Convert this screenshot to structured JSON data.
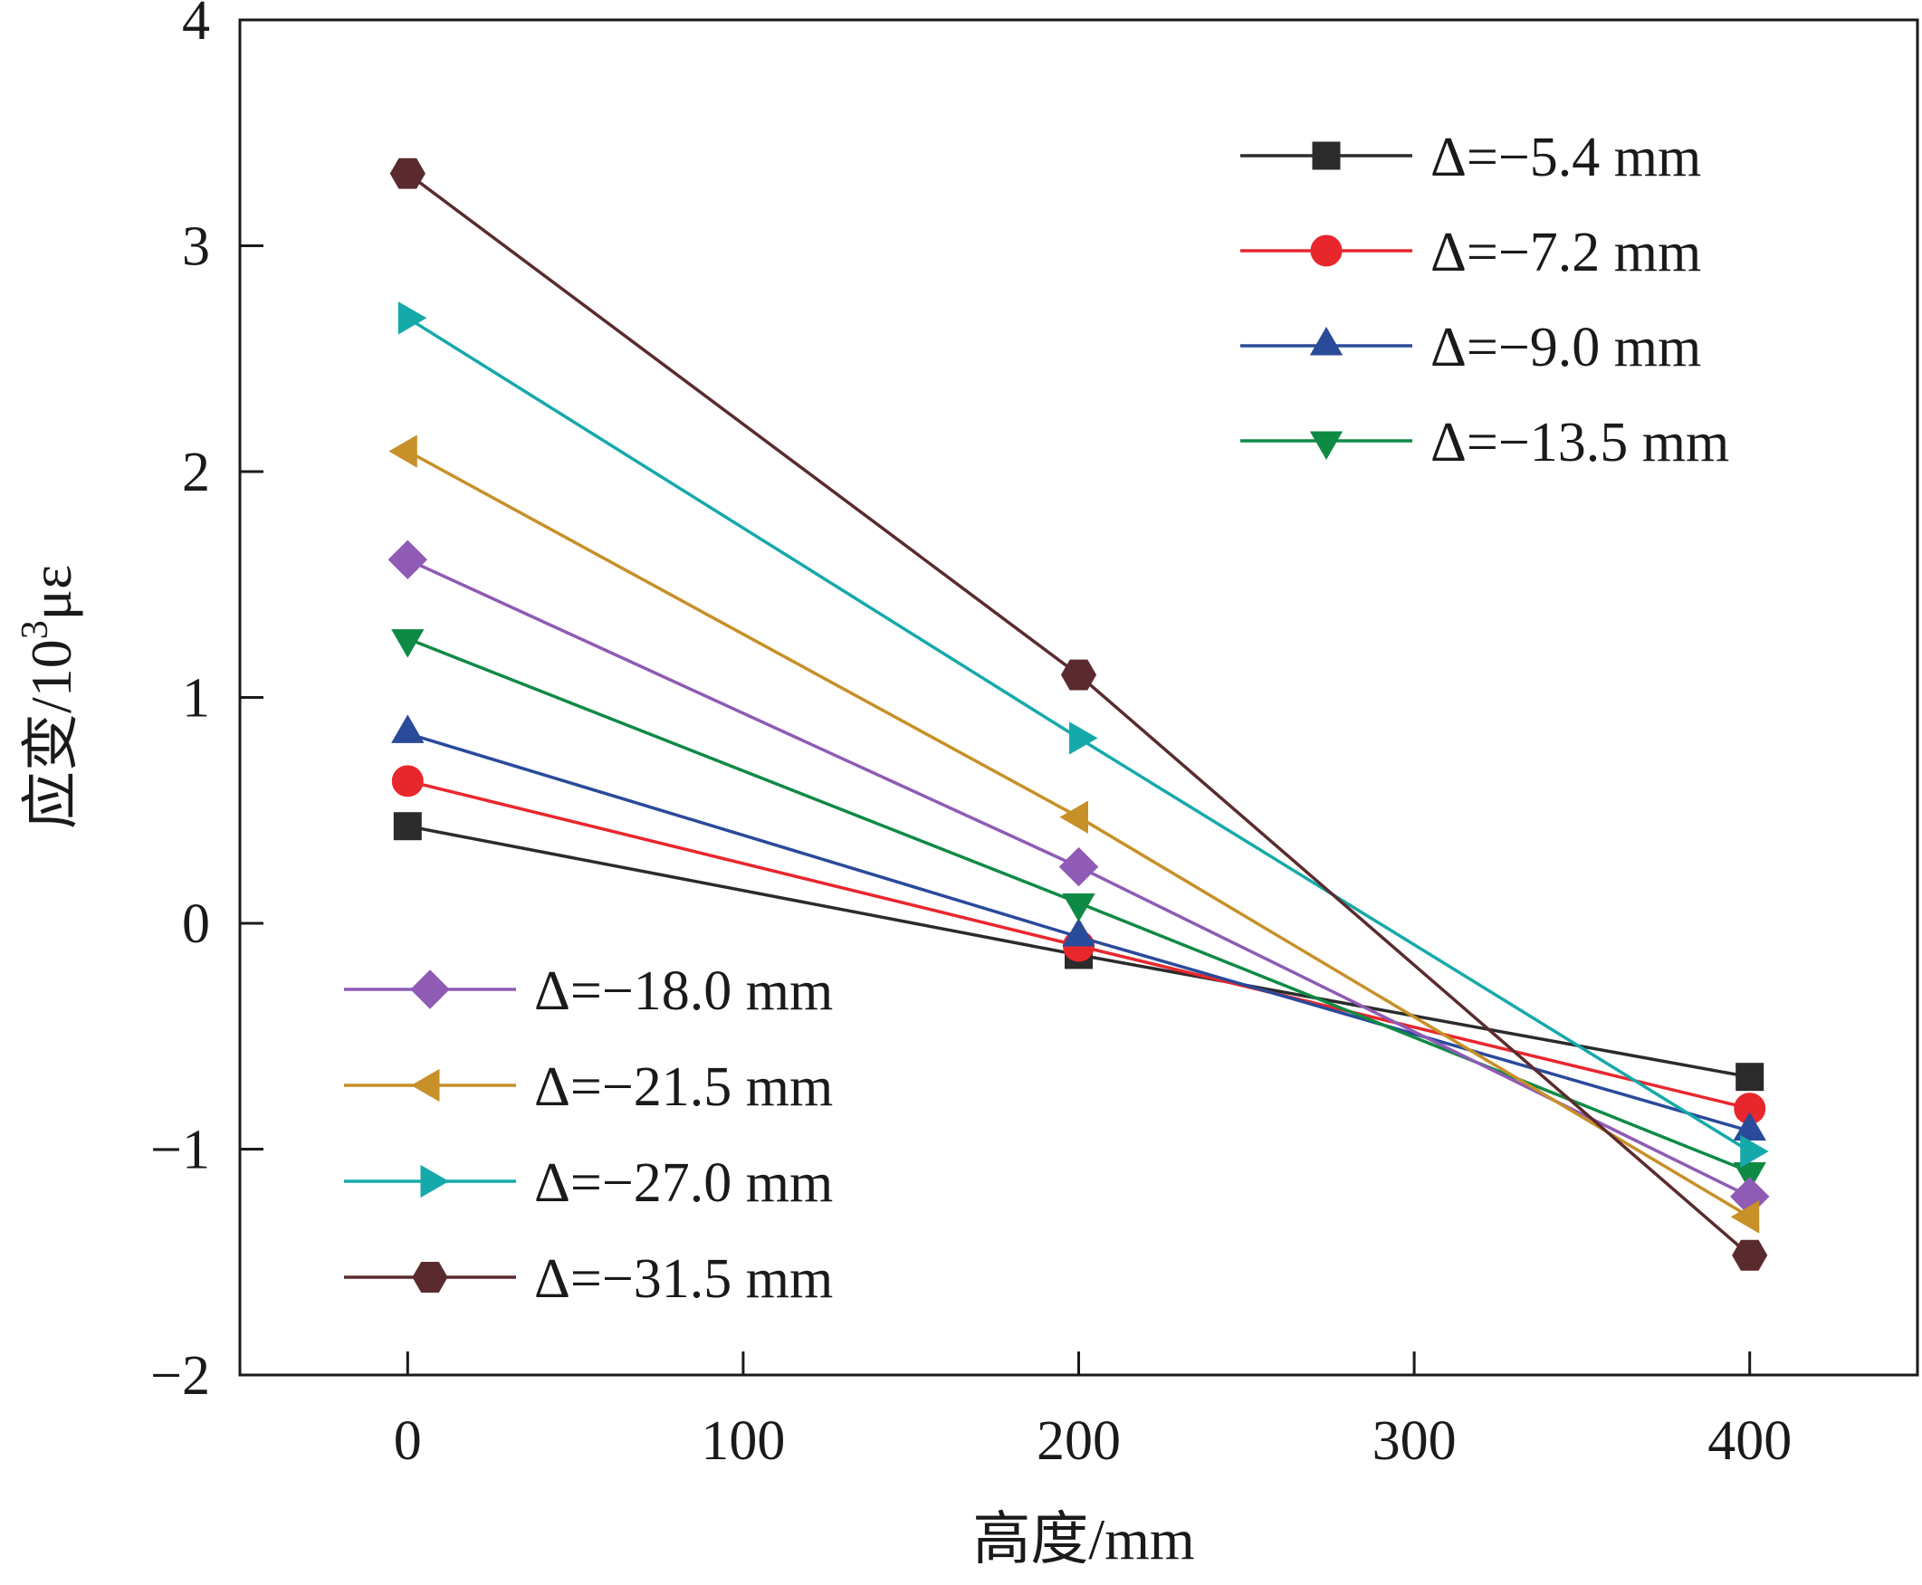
{
  "chart_data": {
    "type": "line",
    "xlabel": "高度/mm",
    "ylabel_main": "应变/10",
    "ylabel_sup": "3",
    "ylabel_unit": "με",
    "xlim": [
      -50,
      450
    ],
    "ylim": [
      -2,
      4
    ],
    "xticks": [
      0,
      100,
      200,
      300,
      400
    ],
    "yticks": [
      -2,
      -1,
      0,
      1,
      2,
      3,
      4
    ],
    "xtick_labels": [
      "0",
      "100",
      "200",
      "300",
      "400"
    ],
    "ytick_labels": [
      "−2",
      "−1",
      "0",
      "1",
      "2",
      "3",
      "4"
    ],
    "grid": false,
    "x": [
      0,
      200,
      400
    ],
    "series": [
      {
        "name": "Δ=−5.4 mm",
        "values": [
          0.43,
          -0.14,
          -0.68
        ],
        "color": "#2b2b2b",
        "marker": "square"
      },
      {
        "name": "Δ=−7.2 mm",
        "values": [
          0.63,
          -0.1,
          -0.82
        ],
        "color": "#e8272d",
        "marker": "circle"
      },
      {
        "name": "Δ=−9.0 mm",
        "values": [
          0.84,
          -0.06,
          -0.92
        ],
        "color": "#2a4a9a",
        "marker": "triangle-up"
      },
      {
        "name": "Δ=−13.5 mm",
        "values": [
          1.26,
          0.09,
          -1.1
        ],
        "color": "#0f8a45",
        "marker": "triangle-down"
      },
      {
        "name": "Δ=−18.0 mm",
        "values": [
          1.61,
          0.25,
          -1.21
        ],
        "color": "#8f5bb5",
        "marker": "diamond"
      },
      {
        "name": "Δ=−21.5 mm",
        "values": [
          2.09,
          0.47,
          -1.3
        ],
        "color": "#c79028",
        "marker": "triangle-left"
      },
      {
        "name": "Δ=−27.0 mm",
        "values": [
          2.68,
          0.82,
          -1.01
        ],
        "color": "#16a9aa",
        "marker": "triangle-right"
      },
      {
        "name": "Δ=−31.5 mm",
        "values": [
          3.32,
          1.1,
          -1.47
        ],
        "color": "#5a2b2e",
        "marker": "hexagon"
      }
    ],
    "legend": [
      {
        "placement": "top-right",
        "series": [
          0,
          1,
          2,
          3
        ]
      },
      {
        "placement": "bottom-left",
        "series": [
          4,
          5,
          6,
          7
        ]
      }
    ]
  }
}
